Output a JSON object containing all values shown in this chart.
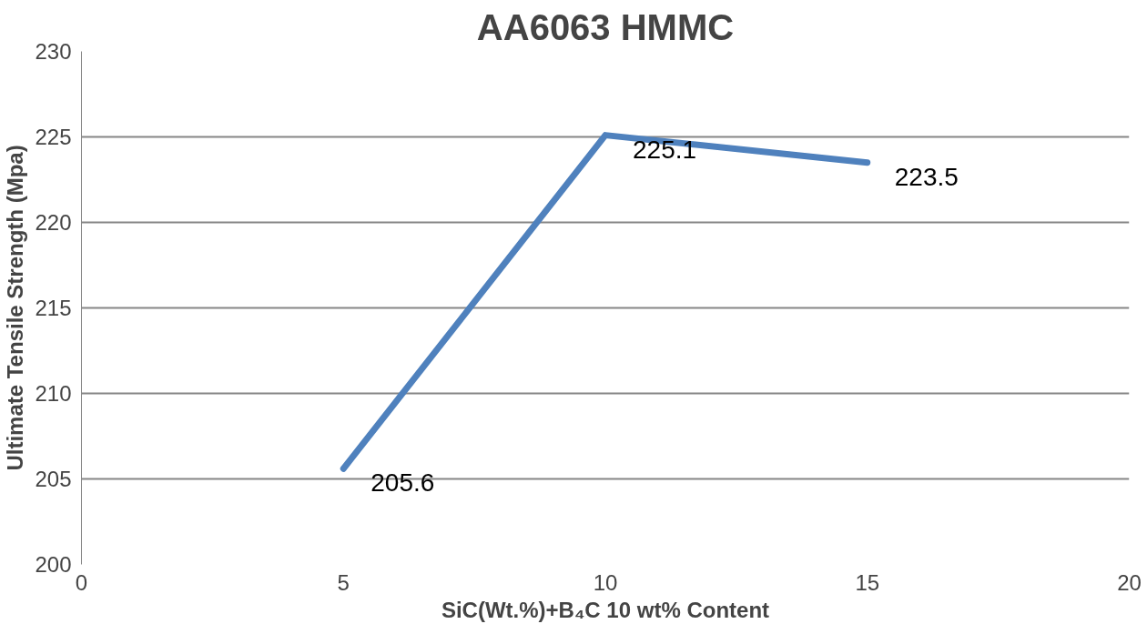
{
  "chart_data": {
    "type": "line",
    "title": "AA6063 HMMC",
    "xlabel": "SiC(Wt.%)+B₄C 10 wt% Content",
    "ylabel": "Ultimate Tensile Strength (Mpa)",
    "x": [
      5,
      10,
      15
    ],
    "series": [
      {
        "color": "#4f81bd",
        "values": [
          205.6,
          225.1,
          223.5
        ]
      }
    ],
    "xlim": [
      0,
      20
    ],
    "xticks": [
      0,
      5,
      10,
      15,
      20
    ],
    "ylim": [
      200,
      230
    ],
    "yticks": [
      200,
      205,
      210,
      215,
      220,
      225,
      230
    ],
    "grid": "y",
    "data_labels": true
  }
}
